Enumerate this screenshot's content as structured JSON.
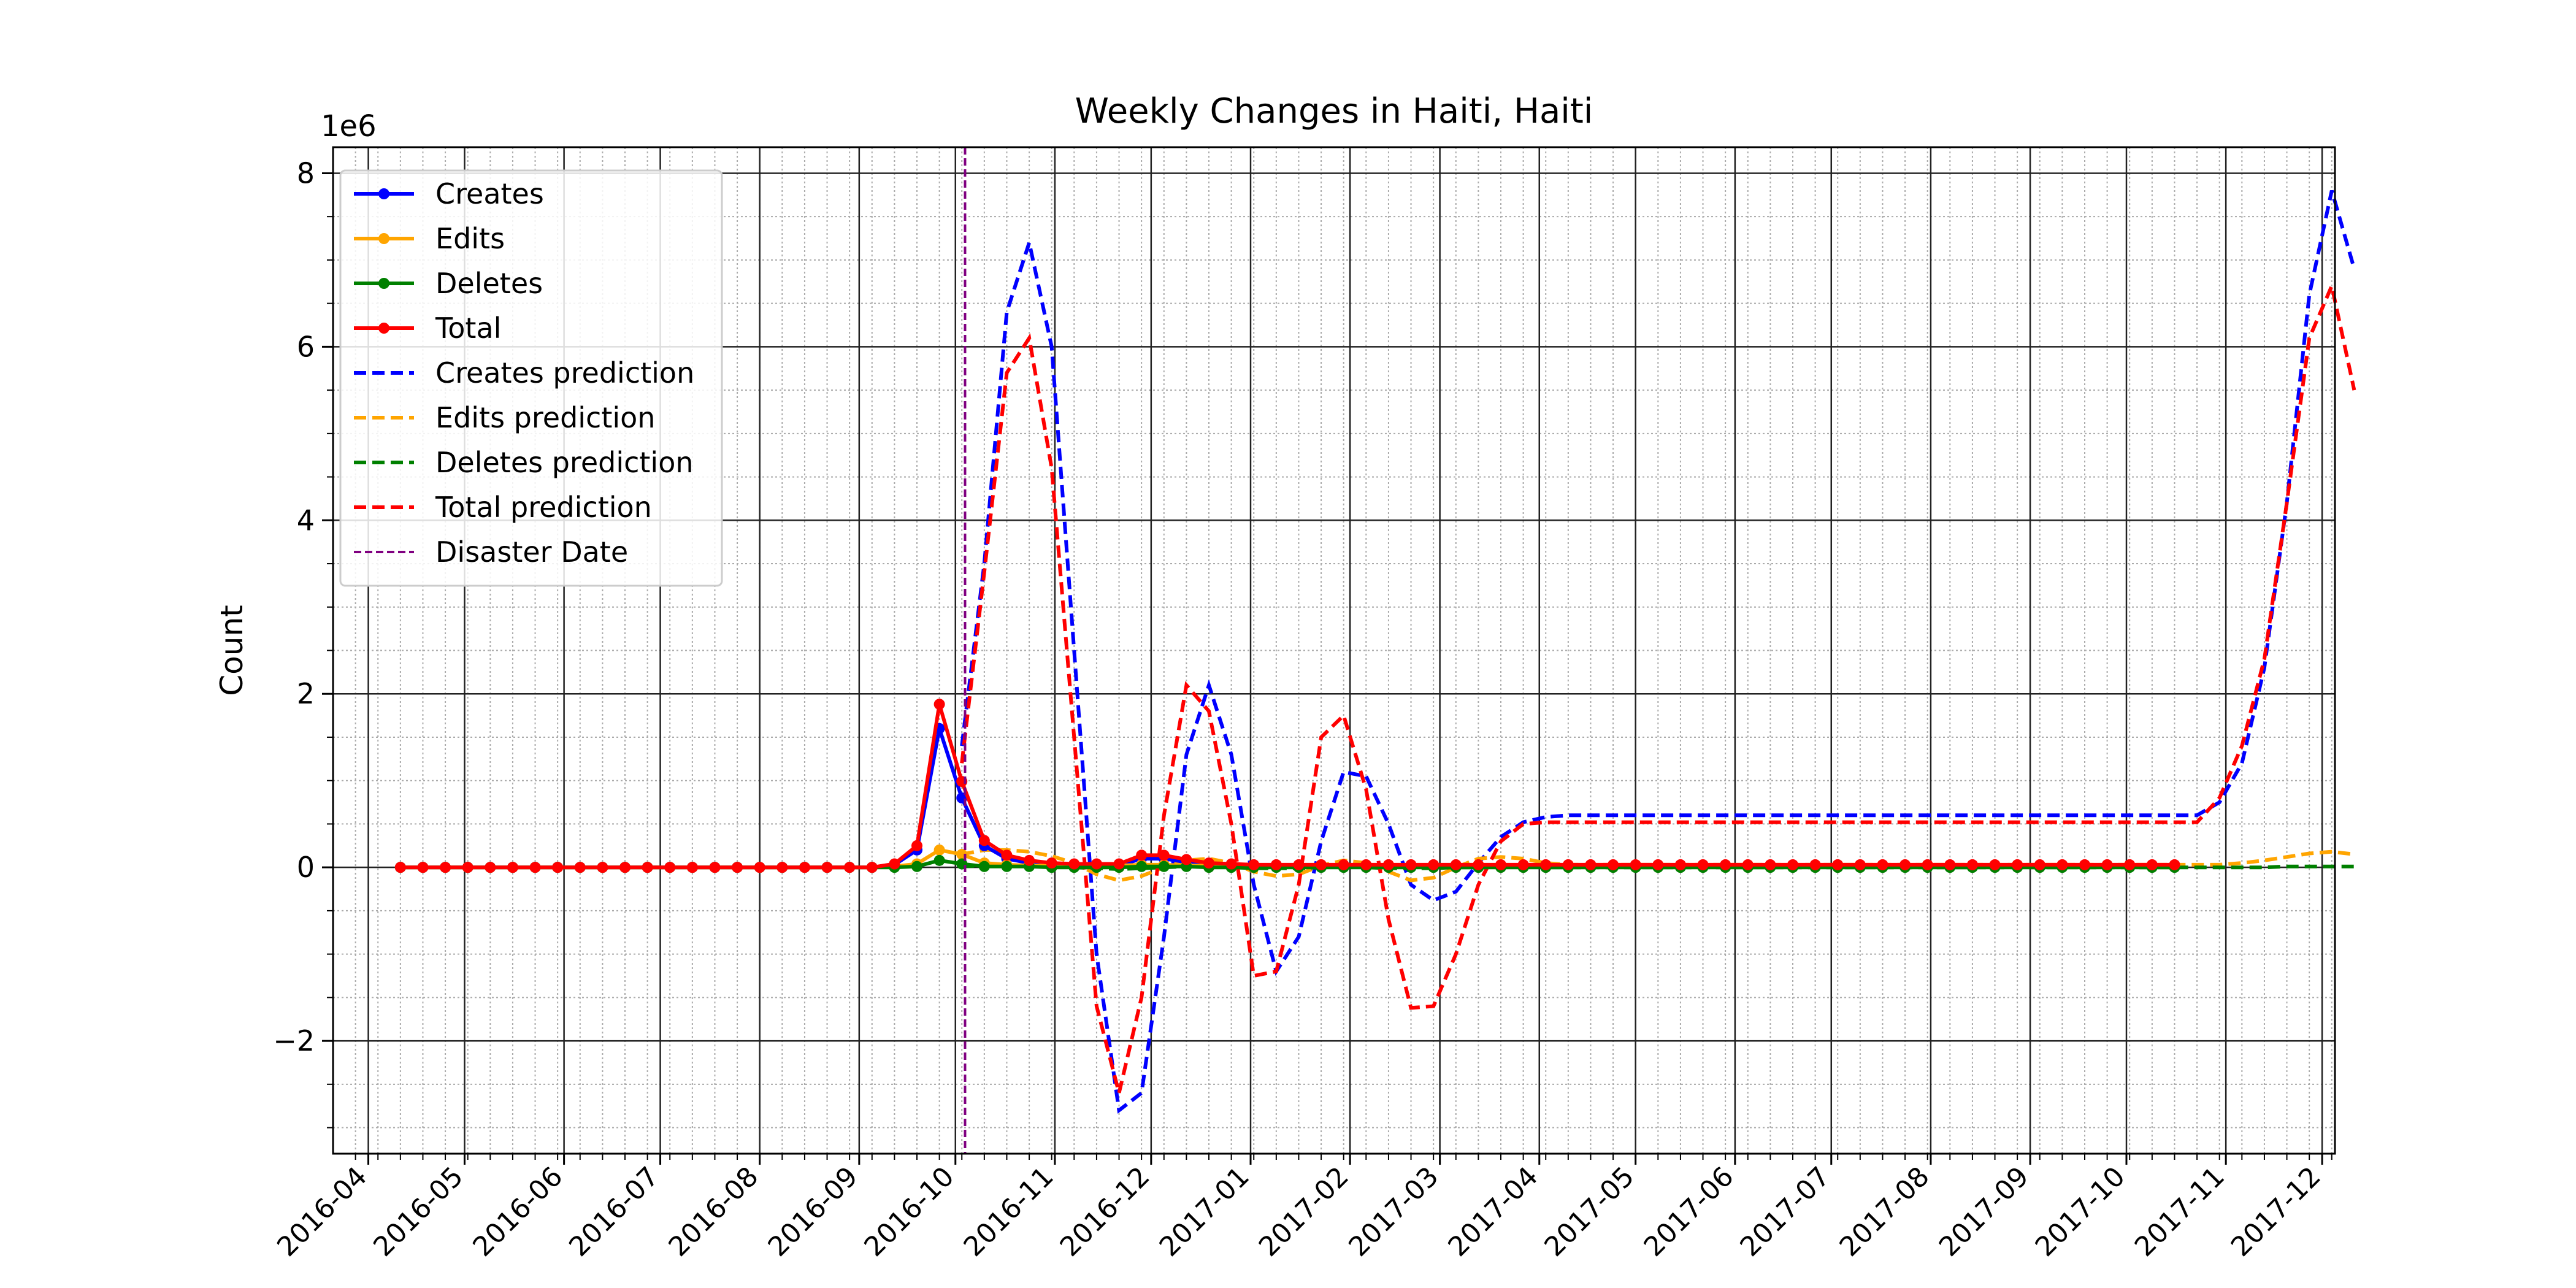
{
  "chart_data": {
    "type": "line",
    "title": "Weekly Changes in Haiti, Haiti",
    "xlabel": "",
    "ylabel": "Count",
    "y_offset_label": "1e6",
    "ylim": [
      -3.3,
      8.3
    ],
    "xlim": [
      "2016-03-21",
      "2017-12-05"
    ],
    "x_ticks": [
      "2016-04",
      "2016-05",
      "2016-06",
      "2016-07",
      "2016-08",
      "2016-09",
      "2016-10",
      "2016-11",
      "2016-12",
      "2017-01",
      "2017-02",
      "2017-03",
      "2017-04",
      "2017-05",
      "2017-06",
      "2017-07",
      "2017-08",
      "2017-09",
      "2017-10",
      "2017-11",
      "2017-12"
    ],
    "y_ticks": [
      -2,
      0,
      2,
      4,
      6,
      8
    ],
    "y_tick_labels": [
      "−2",
      "0",
      "2",
      "4",
      "6",
      "8"
    ],
    "grid": true,
    "legend": "top-left",
    "disaster_date": "2016-10-04",
    "weeks_start": "2016-04-11",
    "series": [
      {
        "name": "Creates",
        "color": "#0000ff",
        "style": "solid-marker",
        "values": [
          0,
          0,
          0,
          0,
          0,
          0,
          0,
          0,
          0,
          0,
          0,
          0,
          0,
          0,
          0,
          0,
          0,
          0,
          0,
          0,
          0,
          0,
          0.03,
          0.2,
          1.6,
          0.8,
          0.25,
          0.1,
          0.05,
          0.03,
          0.02,
          0.02,
          0.02,
          0.1,
          0.1,
          0.06,
          0.03,
          0.02,
          0.01,
          0.01,
          0.01,
          0.01,
          0.01,
          0.01,
          0.01,
          0.01,
          0.01,
          0.01,
          0.01,
          0.01,
          0.01,
          0.01,
          0.01,
          0.01,
          0.01,
          0.01,
          0.01,
          0.01,
          0.01,
          0.01,
          0.01,
          0.01,
          0.01,
          0.01,
          0.01,
          0.01,
          0.01,
          0.01,
          0.01,
          0.01,
          0.01,
          0.01,
          0.01,
          0.01,
          0.01,
          0.01,
          0.01,
          0.01,
          0.01,
          0.01
        ]
      },
      {
        "name": "Edits",
        "color": "#ffa500",
        "style": "solid-marker",
        "values": [
          0,
          0,
          0,
          0,
          0,
          0,
          0,
          0,
          0,
          0,
          0,
          0,
          0,
          0,
          0,
          0,
          0,
          0,
          0,
          0,
          0,
          0,
          0.01,
          0.04,
          0.2,
          0.15,
          0.05,
          0.03,
          0.02,
          0.02,
          0.02,
          0.02,
          0.02,
          0.03,
          0.03,
          0.02,
          0.02,
          0.02,
          0.02,
          0.02,
          0.02,
          0.02,
          0.02,
          0.02,
          0.02,
          0.02,
          0.02,
          0.02,
          0.02,
          0.02,
          0.02,
          0.02,
          0.02,
          0.02,
          0.02,
          0.02,
          0.02,
          0.02,
          0.02,
          0.02,
          0.02,
          0.02,
          0.02,
          0.02,
          0.02,
          0.02,
          0.02,
          0.02,
          0.02,
          0.02,
          0.02,
          0.02,
          0.02,
          0.02,
          0.02,
          0.02,
          0.02,
          0.02,
          0.02,
          0.02
        ]
      },
      {
        "name": "Deletes",
        "color": "#008000",
        "style": "solid-marker",
        "values": [
          0,
          0,
          0,
          0,
          0,
          0,
          0,
          0,
          0,
          0,
          0,
          0,
          0,
          0,
          0,
          0,
          0,
          0,
          0,
          0,
          0,
          0,
          0,
          0.01,
          0.08,
          0.04,
          0.01,
          0.01,
          0.01,
          0,
          0,
          0,
          0,
          0.01,
          0.01,
          0.01,
          0,
          0,
          0,
          0,
          0,
          0,
          0,
          0,
          0,
          0,
          0,
          0,
          0,
          0,
          0,
          0,
          0,
          0,
          0,
          0,
          0,
          0,
          0,
          0,
          0,
          0,
          0,
          0,
          0,
          0,
          0,
          0,
          0,
          0,
          0,
          0,
          0,
          0,
          0,
          0,
          0,
          0,
          0,
          0
        ]
      },
      {
        "name": "Total",
        "color": "#ff0000",
        "style": "solid-marker",
        "values": [
          0,
          0,
          0,
          0,
          0,
          0,
          0,
          0,
          0,
          0,
          0,
          0,
          0,
          0,
          0,
          0,
          0,
          0,
          0,
          0,
          0,
          0,
          0.04,
          0.25,
          1.88,
          0.99,
          0.31,
          0.14,
          0.08,
          0.05,
          0.04,
          0.04,
          0.04,
          0.14,
          0.14,
          0.09,
          0.05,
          0.04,
          0.03,
          0.03,
          0.03,
          0.03,
          0.03,
          0.03,
          0.03,
          0.03,
          0.03,
          0.03,
          0.03,
          0.03,
          0.03,
          0.03,
          0.03,
          0.03,
          0.03,
          0.03,
          0.03,
          0.03,
          0.03,
          0.03,
          0.03,
          0.03,
          0.03,
          0.03,
          0.03,
          0.03,
          0.03,
          0.03,
          0.03,
          0.03,
          0.03,
          0.03,
          0.03,
          0.03,
          0.03,
          0.03,
          0.03,
          0.03,
          0.03,
          0.03
        ]
      }
    ],
    "prediction_start": "2016-10-03",
    "predictions": [
      {
        "name": "Creates prediction",
        "color": "#0000ff",
        "values": [
          1.4,
          3.5,
          6.4,
          7.2,
          6.0,
          2.5,
          -1.0,
          -2.8,
          -2.6,
          -0.8,
          1.3,
          2.1,
          1.3,
          -0.2,
          -1.2,
          -0.8,
          0.3,
          1.1,
          1.05,
          0.5,
          -0.2,
          -0.38,
          -0.28,
          0.05,
          0.35,
          0.52,
          0.58,
          0.6,
          0.6,
          0.6,
          0.6,
          0.6,
          0.6,
          0.6,
          0.6,
          0.6,
          0.6,
          0.6,
          0.6,
          0.6,
          0.6,
          0.6,
          0.6,
          0.6,
          0.6,
          0.6,
          0.6,
          0.6,
          0.6,
          0.6,
          0.6,
          0.6,
          0.6,
          0.6,
          0.6,
          0.6,
          0.75,
          1.2,
          2.3,
          4.2,
          6.6,
          7.8,
          6.9
        ]
      },
      {
        "name": "Edits prediction",
        "color": "#ffa500",
        "values": [
          0.15,
          0.2,
          0.2,
          0.18,
          0.13,
          0.05,
          -0.08,
          -0.15,
          -0.1,
          0.0,
          0.08,
          0.1,
          0.05,
          -0.05,
          -0.1,
          -0.08,
          0.02,
          0.08,
          0.05,
          -0.05,
          -0.15,
          -0.12,
          0.0,
          0.1,
          0.12,
          0.1,
          0.05,
          0.03,
          0.03,
          0.03,
          0.03,
          0.03,
          0.03,
          0.03,
          0.03,
          0.03,
          0.03,
          0.03,
          0.03,
          0.03,
          0.03,
          0.03,
          0.03,
          0.03,
          0.03,
          0.03,
          0.03,
          0.03,
          0.03,
          0.03,
          0.03,
          0.03,
          0.03,
          0.03,
          0.03,
          0.03,
          0.03,
          0.05,
          0.08,
          0.12,
          0.16,
          0.18,
          0.15
        ]
      },
      {
        "name": "Deletes prediction",
        "color": "#008000",
        "values": [
          0.01,
          0.02,
          0.02,
          0.02,
          0.01,
          0.0,
          -0.01,
          -0.02,
          -0.01,
          0.0,
          0.01,
          0.01,
          0.0,
          -0.01,
          -0.01,
          -0.01,
          0.0,
          0.01,
          0.0,
          -0.01,
          -0.01,
          -0.01,
          0.0,
          0.0,
          0.01,
          0.01,
          0.0,
          0.0,
          0.0,
          0.0,
          0.0,
          0.0,
          0.0,
          0.0,
          0.0,
          0.0,
          0.0,
          0.0,
          0.0,
          0.0,
          0.0,
          0.0,
          0.0,
          0.0,
          0.0,
          0.0,
          0.0,
          0.0,
          0.0,
          0.0,
          0.0,
          0.0,
          0.0,
          0.0,
          0.0,
          0.0,
          0.0,
          0.0,
          0.0,
          0.01,
          0.01,
          0.01,
          0.01
        ]
      },
      {
        "name": "Total prediction",
        "color": "#ff0000",
        "values": [
          1.2,
          3.4,
          5.7,
          6.1,
          4.6,
          1.5,
          -1.6,
          -2.6,
          -1.5,
          0.6,
          2.1,
          1.8,
          0.5,
          -1.25,
          -1.2,
          -0.2,
          1.5,
          1.75,
          0.9,
          -0.6,
          -1.62,
          -1.6,
          -1.0,
          -0.2,
          0.3,
          0.5,
          0.52,
          0.52,
          0.52,
          0.52,
          0.52,
          0.52,
          0.52,
          0.52,
          0.52,
          0.52,
          0.52,
          0.52,
          0.52,
          0.52,
          0.52,
          0.52,
          0.52,
          0.52,
          0.52,
          0.52,
          0.52,
          0.52,
          0.52,
          0.52,
          0.52,
          0.52,
          0.52,
          0.52,
          0.52,
          0.52,
          0.8,
          1.4,
          2.4,
          4.2,
          6.1,
          6.7,
          5.5
        ]
      }
    ],
    "disaster_label": "Disaster Date",
    "disaster_color": "#800080"
  }
}
